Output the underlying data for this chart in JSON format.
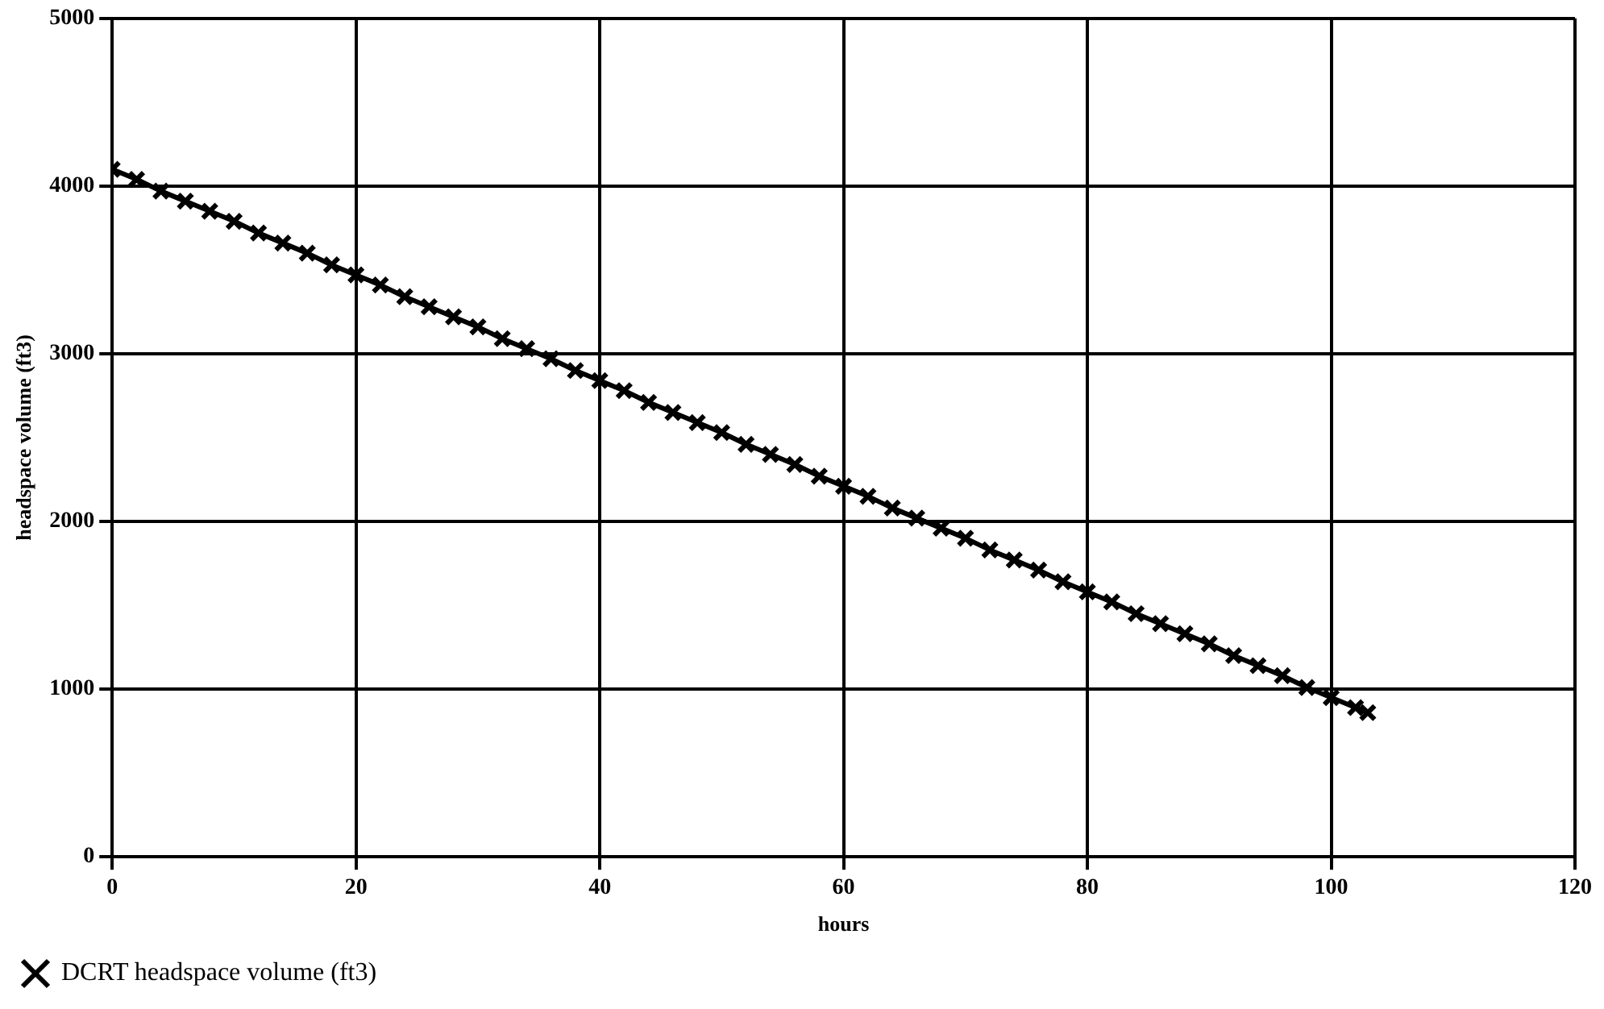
{
  "chart_data": {
    "type": "line",
    "xlabel": "hours",
    "ylabel": "headspace volume (ft3)",
    "x": [
      0,
      2,
      4,
      6,
      8,
      10,
      12,
      14,
      16,
      18,
      20,
      22,
      24,
      26,
      28,
      30,
      32,
      34,
      36,
      38,
      40,
      42,
      44,
      46,
      48,
      50,
      52,
      54,
      56,
      58,
      60,
      62,
      64,
      66,
      68,
      70,
      72,
      74,
      76,
      78,
      80,
      82,
      84,
      86,
      88,
      90,
      92,
      94,
      96,
      98,
      100,
      102,
      103
    ],
    "series": [
      {
        "name": "DCRT headspace volume (ft3)",
        "color": "#000000",
        "values": [
          4100,
          4040,
          3970,
          3910,
          3850,
          3790,
          3720,
          3660,
          3600,
          3530,
          3470,
          3410,
          3340,
          3280,
          3220,
          3160,
          3090,
          3030,
          2970,
          2900,
          2840,
          2780,
          2710,
          2650,
          2590,
          2530,
          2460,
          2400,
          2340,
          2270,
          2210,
          2150,
          2080,
          2020,
          1960,
          1900,
          1830,
          1770,
          1710,
          1640,
          1580,
          1520,
          1450,
          1390,
          1330,
          1270,
          1200,
          1140,
          1080,
          1010,
          950,
          890,
          860
        ]
      }
    ],
    "xlim": [
      0,
      120
    ],
    "xticks": [
      0,
      20,
      40,
      60,
      80,
      100,
      120
    ],
    "ylim": [
      0,
      5000
    ],
    "yticks": [
      0,
      1000,
      2000,
      3000,
      4000,
      5000
    ],
    "grid": true,
    "legend": "bottom left",
    "marker": "cross",
    "line_style": "solid"
  }
}
